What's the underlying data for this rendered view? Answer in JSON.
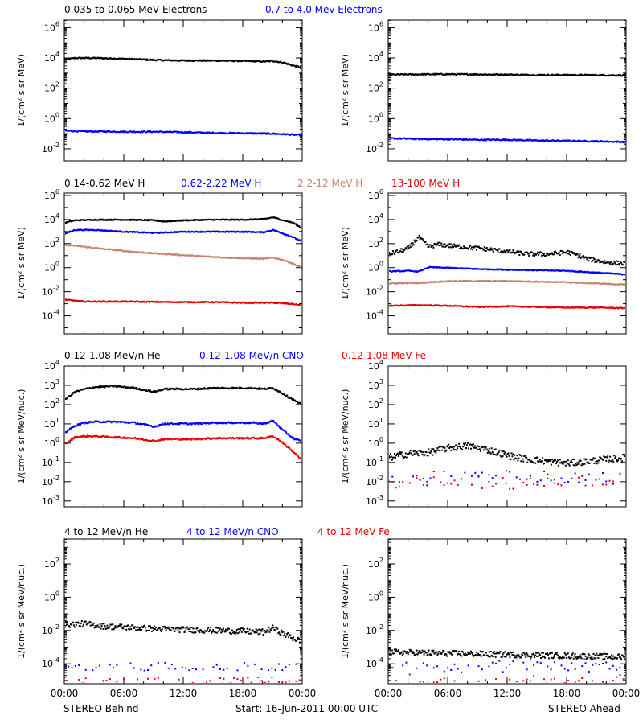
{
  "colors": {
    "black": "#000000",
    "blue": "#0000ff",
    "tan": "#c8826e",
    "red": "#e80000"
  },
  "footer": {
    "left": "STEREO Behind",
    "center": "Start: 16-Jun-2011 00:00 UTC",
    "right": "STEREO Ahead"
  },
  "rows": [
    {
      "ylabel": "1/(cm² s sr MeV)",
      "legend": [
        {
          "text": "0.035 to 0.065 MeV Electrons",
          "color": "#000000"
        },
        {
          "text": "0.7 to 4.0 Mev Electrons",
          "color": "#0000ff"
        }
      ]
    },
    {
      "ylabel": "1/(cm² s sr MeV)",
      "legend": [
        {
          "text": "0.14-0.62 MeV H",
          "color": "#000000"
        },
        {
          "text": "0.62-2.22 MeV H",
          "color": "#0000ff"
        },
        {
          "text": "2.2-12 MeV H",
          "color": "#c8826e"
        },
        {
          "text": "13-100 MeV H",
          "color": "#e80000"
        }
      ]
    },
    {
      "ylabel": "1/(cm² s sr MeV/nuc.)",
      "legend": [
        {
          "text": "0.12-1.08 MeV/n He",
          "color": "#000000"
        },
        {
          "text": "0.12-1.08 MeV/n CNO",
          "color": "#0000ff"
        },
        {
          "text": "0.12-1.08 MeV Fe",
          "color": "#e80000"
        }
      ]
    },
    {
      "ylabel": "1/(cm² s sr MeV/nuc.)",
      "legend": [
        {
          "text": "4 to 12 MeV/n He",
          "color": "#000000"
        },
        {
          "text": "4 to 12 MeV/n CNO",
          "color": "#0000ff"
        },
        {
          "text": "4 to 12 MeV Fe",
          "color": "#e80000"
        }
      ]
    }
  ],
  "chart_data": [
    {
      "type": "scatter",
      "panel": "electrons-behind",
      "yscale": "log",
      "ylim": [
        -2.8,
        6.5
      ],
      "yticks": [
        -2,
        0,
        2,
        4,
        6
      ],
      "xticks": [
        "00:00",
        "06:00",
        "12:00",
        "18:00",
        "00:00"
      ],
      "xlim": [
        0,
        24
      ],
      "series": [
        {
          "name": "0.035 to 0.065 MeV Electrons",
          "color": "#000000",
          "x": [
            0,
            1,
            3,
            6,
            9,
            12,
            15,
            18,
            20,
            21,
            22,
            23,
            24
          ],
          "y": [
            3.95,
            4.05,
            4.05,
            4.0,
            3.92,
            3.88,
            3.88,
            3.85,
            3.82,
            3.85,
            3.75,
            3.55,
            3.4
          ]
        },
        {
          "name": "0.7 to 4.0 Mev Electrons",
          "color": "#0000ff",
          "x": [
            0,
            2,
            4,
            6,
            9,
            12,
            15,
            18,
            21,
            24
          ],
          "y": [
            -0.75,
            -0.8,
            -0.8,
            -0.82,
            -0.82,
            -0.85,
            -0.9,
            -0.92,
            -0.95,
            -1.05
          ]
        }
      ]
    },
    {
      "type": "scatter",
      "panel": "electrons-ahead",
      "yscale": "log",
      "ylim": [
        -2.8,
        6.5
      ],
      "yticks": [
        -2,
        0,
        2,
        4,
        6
      ],
      "xticks": [
        "00:00",
        "06:00",
        "12:00",
        "18:00",
        "00:00"
      ],
      "xlim": [
        0,
        24
      ],
      "series": [
        {
          "name": "0.035 to 0.065 MeV Electrons",
          "color": "#000000",
          "x": [
            0,
            3,
            6,
            9,
            12,
            15,
            18,
            21,
            24
          ],
          "y": [
            2.95,
            2.97,
            2.98,
            2.97,
            2.95,
            2.93,
            2.93,
            2.92,
            2.9
          ]
        },
        {
          "name": "0.7 to 4.0 Mev Electrons",
          "color": "#0000ff",
          "x": [
            0,
            3,
            6,
            9,
            12,
            15,
            18,
            21,
            24
          ],
          "y": [
            -1.25,
            -1.3,
            -1.32,
            -1.35,
            -1.35,
            -1.4,
            -1.42,
            -1.45,
            -1.5
          ]
        }
      ]
    },
    {
      "type": "scatter",
      "panel": "protons-behind",
      "yscale": "log",
      "ylim": [
        -5.5,
        6.2
      ],
      "yticks": [
        -4,
        -2,
        0,
        2,
        4,
        6
      ],
      "xticks": [
        "00:00",
        "06:00",
        "12:00",
        "18:00",
        "00:00"
      ],
      "xlim": [
        0,
        24
      ],
      "series": [
        {
          "name": "0.14-0.62 MeV H",
          "color": "#000000",
          "x": [
            0,
            1,
            3,
            6,
            9,
            10,
            12,
            15,
            18,
            20,
            21,
            22,
            23,
            24
          ],
          "y": [
            3.8,
            4.0,
            4.05,
            4.05,
            4.0,
            3.9,
            4.0,
            4.05,
            4.05,
            4.1,
            4.25,
            4.0,
            3.8,
            3.3
          ]
        },
        {
          "name": "0.62-2.22 MeV H",
          "color": "#0000ff",
          "x": [
            0,
            1,
            3,
            6,
            9,
            12,
            15,
            18,
            20,
            21,
            22,
            23,
            24
          ],
          "y": [
            2.9,
            3.2,
            3.2,
            3.05,
            2.95,
            3.05,
            3.05,
            3.05,
            3.0,
            3.2,
            2.9,
            2.6,
            2.2
          ]
        },
        {
          "name": "2.2-12 MeV H",
          "color": "#c8826e",
          "x": [
            0,
            1,
            3,
            6,
            9,
            12,
            15,
            18,
            20,
            21,
            22,
            23,
            24
          ],
          "y": [
            1.95,
            1.9,
            1.7,
            1.45,
            1.25,
            1.1,
            0.95,
            0.85,
            0.8,
            0.9,
            0.7,
            0.4,
            0.0
          ]
        },
        {
          "name": "13-100 MeV H",
          "color": "#e80000",
          "x": [
            0,
            2,
            4,
            6,
            9,
            12,
            15,
            18,
            21,
            23,
            24
          ],
          "y": [
            -2.6,
            -2.75,
            -2.75,
            -2.75,
            -2.78,
            -2.8,
            -2.8,
            -2.85,
            -2.85,
            -2.95,
            -3.1
          ]
        }
      ]
    },
    {
      "type": "scatter",
      "panel": "protons-ahead",
      "yscale": "log",
      "ylim": [
        -5.5,
        6.2
      ],
      "yticks": [
        -4,
        -2,
        0,
        2,
        4,
        6
      ],
      "xticks": [
        "00:00",
        "06:00",
        "12:00",
        "18:00",
        "00:00"
      ],
      "xlim": [
        0,
        24
      ],
      "series": [
        {
          "name": "0.14-0.62 MeV H",
          "color": "#000000",
          "x": [
            0,
            1,
            2,
            3,
            3.5,
            4,
            5,
            6,
            8,
            10,
            12,
            14,
            16,
            18,
            19,
            20,
            22,
            24
          ],
          "y": [
            1.2,
            1.4,
            1.7,
            2.6,
            2.2,
            1.8,
            2.0,
            1.9,
            1.75,
            1.6,
            1.4,
            1.2,
            1.2,
            1.35,
            1.1,
            0.8,
            0.5,
            0.4
          ]
        },
        {
          "name": "0.62-2.22 MeV H",
          "color": "#0000ff",
          "x": [
            0,
            2,
            3,
            4,
            6,
            9,
            12,
            15,
            18,
            21,
            24
          ],
          "y": [
            -0.25,
            -0.2,
            -0.25,
            0.1,
            0.05,
            -0.05,
            -0.1,
            -0.15,
            -0.2,
            -0.35,
            -0.5
          ]
        },
        {
          "name": "2.2-12 MeV H",
          "color": "#c8826e",
          "x": [
            0,
            3,
            6,
            9,
            12,
            15,
            18,
            21,
            24
          ],
          "y": [
            -1.25,
            -1.2,
            -1.05,
            -1.05,
            -1.05,
            -1.1,
            -1.15,
            -1.25,
            -1.35
          ]
        },
        {
          "name": "13-100 MeV H",
          "color": "#e80000",
          "x": [
            0,
            3,
            6,
            9,
            12,
            15,
            18,
            21,
            24
          ],
          "y": [
            -3.1,
            -3.05,
            -3.1,
            -3.2,
            -3.15,
            -3.2,
            -3.25,
            -3.25,
            -3.3
          ]
        }
      ]
    },
    {
      "type": "scatter",
      "panel": "heavy-behind",
      "yscale": "log",
      "ylim": [
        -3.3,
        4.0
      ],
      "yticks": [
        -3,
        -2,
        -1,
        0,
        1,
        2,
        3,
        4
      ],
      "xticks": [
        "00:00",
        "06:00",
        "12:00",
        "18:00",
        "00:00"
      ],
      "xlim": [
        0,
        24
      ],
      "series": [
        {
          "name": "0.12-1.08 MeV/n He",
          "color": "#000000",
          "x": [
            0,
            1,
            2,
            3,
            5,
            7,
            9,
            10,
            11,
            13,
            15,
            17,
            19,
            20,
            21,
            22,
            23,
            24
          ],
          "y": [
            2.3,
            2.7,
            2.85,
            2.95,
            3.0,
            2.9,
            2.7,
            2.85,
            2.85,
            2.85,
            2.9,
            2.9,
            2.9,
            2.85,
            2.9,
            2.6,
            2.3,
            2.0
          ]
        },
        {
          "name": "0.12-1.08 MeV/n CNO",
          "color": "#0000ff",
          "x": [
            0,
            1,
            2,
            3,
            5,
            7,
            9,
            10,
            11,
            13,
            15,
            17,
            19,
            20,
            21,
            22,
            23,
            24
          ],
          "y": [
            0.6,
            0.95,
            1.1,
            1.15,
            1.15,
            1.1,
            0.9,
            1.05,
            1.05,
            1.05,
            1.1,
            1.1,
            1.1,
            1.05,
            1.2,
            0.7,
            0.3,
            0.1
          ]
        },
        {
          "name": "0.12-1.08 MeV Fe",
          "color": "#e80000",
          "x": [
            0,
            1,
            2,
            3,
            5,
            7,
            9,
            10,
            11,
            13,
            15,
            17,
            19,
            20,
            21,
            22,
            23,
            24
          ],
          "y": [
            0.0,
            0.35,
            0.4,
            0.4,
            0.35,
            0.3,
            0.15,
            0.25,
            0.25,
            0.25,
            0.3,
            0.3,
            0.3,
            0.3,
            0.4,
            0.05,
            -0.4,
            -0.9
          ]
        }
      ]
    },
    {
      "type": "scatter",
      "panel": "heavy-ahead",
      "yscale": "log",
      "ylim": [
        -3.3,
        4.0
      ],
      "yticks": [
        -3,
        -2,
        -1,
        0,
        1,
        2,
        3,
        4
      ],
      "xticks": [
        "00:00",
        "06:00",
        "12:00",
        "18:00",
        "00:00"
      ],
      "xlim": [
        0,
        24
      ],
      "series": [
        {
          "name": "0.12-1.08 MeV/n He",
          "color": "#000000",
          "x": [
            0,
            2,
            4,
            6,
            8,
            10,
            12,
            14,
            16,
            18,
            20,
            22,
            24
          ],
          "y": [
            -0.7,
            -0.5,
            -0.45,
            -0.2,
            -0.1,
            -0.3,
            -0.6,
            -0.8,
            -0.9,
            -1.0,
            -0.9,
            -0.8,
            -0.7
          ]
        },
        {
          "name": "0.12-1.08 MeV/n CNO",
          "color": "#0000ff",
          "x": [
            0,
            24
          ],
          "y": [
            -1.75,
            -1.75
          ]
        },
        {
          "name": "0.12-1.08 MeV Fe",
          "color": "#e80000",
          "x": [
            0,
            24
          ],
          "y": [
            -2.0,
            -2.0
          ]
        }
      ]
    },
    {
      "type": "scatter",
      "panel": "high-energy-behind",
      "yscale": "log",
      "ylim": [
        -5.2,
        3.5
      ],
      "yticks": [
        -4,
        -2,
        0,
        2
      ],
      "xticks": [
        "00:00",
        "06:00",
        "12:00",
        "18:00",
        "00:00"
      ],
      "xlim": [
        0,
        24
      ],
      "series": [
        {
          "name": "4 to 12 MeV/n He",
          "color": "#000000",
          "x": [
            0,
            2,
            4,
            6,
            9,
            12,
            15,
            18,
            20,
            21,
            22,
            23,
            24
          ],
          "y": [
            -1.6,
            -1.55,
            -1.7,
            -1.75,
            -1.85,
            -1.9,
            -1.95,
            -2.0,
            -2.05,
            -1.8,
            -2.15,
            -2.4,
            -2.65
          ]
        },
        {
          "name": "4 to 12 MeV/n CNO",
          "color": "#0000ff",
          "x": [
            0,
            24
          ],
          "y": [
            -4.1,
            -4.1
          ]
        },
        {
          "name": "4 to 12 MeV Fe",
          "color": "#e80000",
          "x": [
            0,
            24
          ],
          "y": [
            -5.0,
            -5.0
          ]
        }
      ]
    },
    {
      "type": "scatter",
      "panel": "high-energy-ahead",
      "yscale": "log",
      "ylim": [
        -5.2,
        3.5
      ],
      "yticks": [
        -4,
        -2,
        0,
        2
      ],
      "xticks": [
        "00:00",
        "06:00",
        "12:00",
        "18:00",
        "00:00"
      ],
      "xlim": [
        0,
        24
      ],
      "series": [
        {
          "name": "4 to 12 MeV/n He",
          "color": "#000000",
          "x": [
            0,
            4,
            8,
            12,
            16,
            20,
            24
          ],
          "y": [
            -3.25,
            -3.3,
            -3.35,
            -3.4,
            -3.45,
            -3.5,
            -3.55
          ]
        },
        {
          "name": "4 to 12 MeV/n CNO",
          "color": "#0000ff",
          "x": [
            0,
            24
          ],
          "y": [
            -4.1,
            -4.1
          ]
        },
        {
          "name": "4 to 12 MeV Fe",
          "color": "#e80000",
          "x": [
            0,
            24
          ],
          "y": [
            -5.0,
            -5.0
          ]
        }
      ]
    }
  ]
}
